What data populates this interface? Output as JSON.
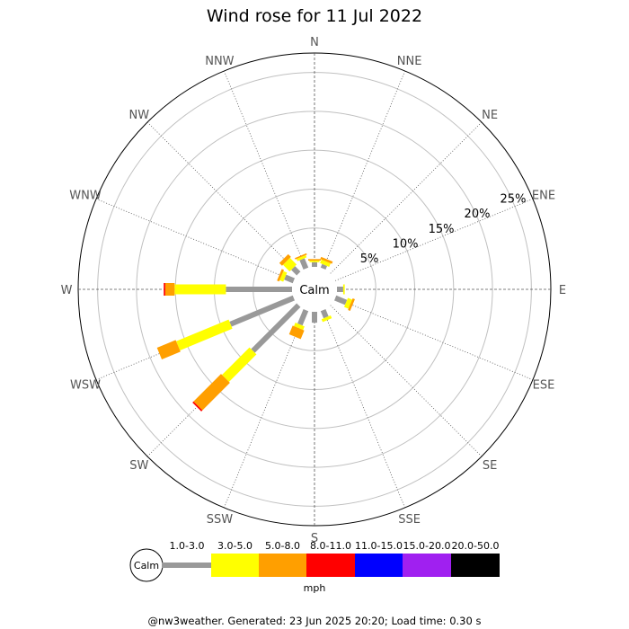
{
  "chart_data": {
    "type": "windrose",
    "title": "Wind rose for 11 Jul 2022",
    "calm_label": "Calm",
    "directions": [
      "N",
      "NNE",
      "NE",
      "ENE",
      "E",
      "ESE",
      "SE",
      "SSE",
      "S",
      "SSW",
      "SW",
      "WSW",
      "W",
      "WNW",
      "NW",
      "NNW"
    ],
    "ring_labels": [
      "5%",
      "10%",
      "15%",
      "20%",
      "25%"
    ],
    "ring_values": [
      5,
      10,
      15,
      20,
      25
    ],
    "max_percent": 27.5,
    "bins": [
      {
        "label": "1.0-3.0",
        "color": "#999999"
      },
      {
        "label": "3.0-5.0",
        "color": "#ffff00"
      },
      {
        "label": "5.0-8.0",
        "color": "#ff9f00"
      },
      {
        "label": "8.0-11.0",
        "color": "#ff0000"
      },
      {
        "label": "11.0-15.0",
        "color": "#0000ff"
      },
      {
        "label": "15.0-20.0",
        "color": "#a020f0"
      },
      {
        "label": "20.0-50.0",
        "color": "#000000"
      }
    ],
    "unit": "mph",
    "series": [
      {
        "direction": "N",
        "values": [
          0.6,
          0.2,
          0.2,
          0,
          0,
          0,
          0
        ]
      },
      {
        "direction": "NNE",
        "values": [
          0.5,
          0.5,
          0.3,
          0,
          0,
          0,
          0
        ]
      },
      {
        "direction": "NE",
        "values": [
          0,
          0,
          0,
          0,
          0,
          0,
          0
        ]
      },
      {
        "direction": "ENE",
        "values": [
          0,
          0,
          0,
          0,
          0,
          0,
          0
        ]
      },
      {
        "direction": "E",
        "values": [
          0.8,
          0.2,
          0,
          0,
          0,
          0,
          0
        ]
      },
      {
        "direction": "ESE",
        "values": [
          1.5,
          0.6,
          0.3,
          0,
          0,
          0,
          0
        ]
      },
      {
        "direction": "SE",
        "values": [
          0,
          0,
          0,
          0,
          0,
          0,
          0
        ]
      },
      {
        "direction": "SSE",
        "values": [
          1.0,
          0.4,
          0,
          0,
          0,
          0,
          0
        ]
      },
      {
        "direction": "S",
        "values": [
          1.4,
          0,
          0,
          0,
          0,
          0,
          0
        ]
      },
      {
        "direction": "SSW",
        "values": [
          2.0,
          0.5,
          1.2,
          0,
          0,
          0,
          0
        ]
      },
      {
        "direction": "SW",
        "values": [
          8.3,
          5.0,
          5.0,
          0.2,
          0,
          0,
          0
        ]
      },
      {
        "direction": "WSW",
        "values": [
          8.8,
          7.3,
          2.6,
          0,
          0,
          0,
          0
        ]
      },
      {
        "direction": "W",
        "values": [
          8.5,
          6.6,
          1.2,
          0.2,
          0,
          0,
          0
        ]
      },
      {
        "direction": "WNW",
        "values": [
          1.2,
          0.5,
          0.3,
          0,
          0,
          0,
          0
        ]
      },
      {
        "direction": "NW",
        "values": [
          1.0,
          1.2,
          0.5,
          0,
          0,
          0,
          0
        ]
      },
      {
        "direction": "NNW",
        "values": [
          1.3,
          0.3,
          0.2,
          0,
          0,
          0,
          0
        ]
      }
    ]
  },
  "footer": "@nw3weather. Generated: 23 Jun 2025 20:20; Load time: 0.30 s"
}
